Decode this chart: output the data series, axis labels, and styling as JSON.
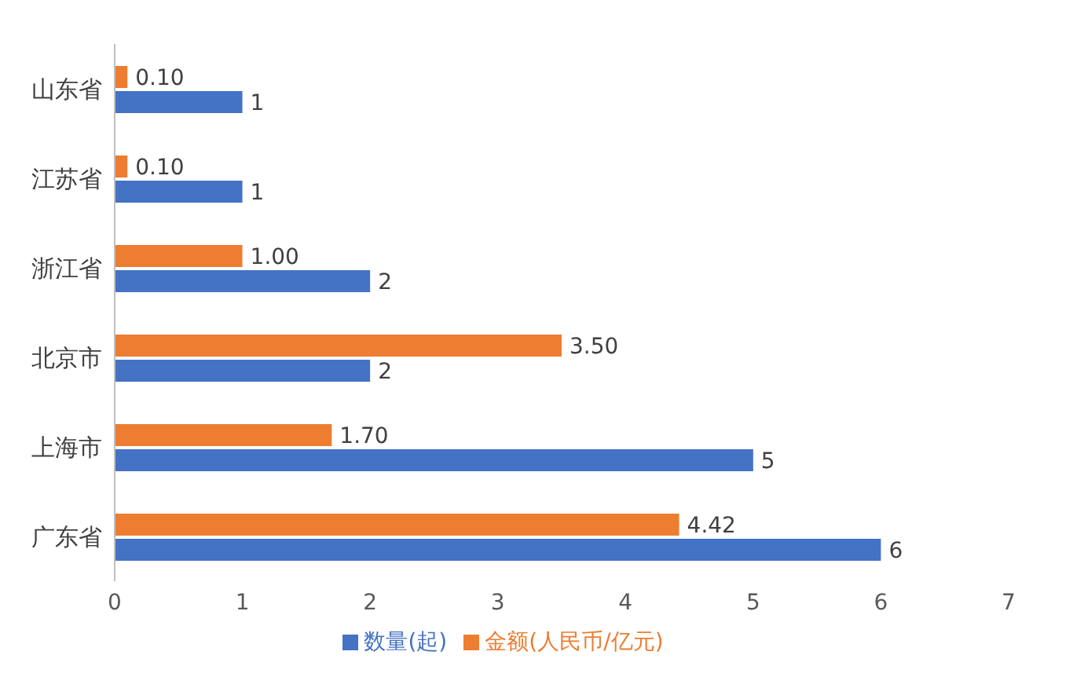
{
  "chart_data": {
    "type": "bar",
    "orientation": "horizontal",
    "categories": [
      "山东省",
      "江苏省",
      "浙江省",
      "北京市",
      "上海市",
      "广东省"
    ],
    "series": [
      {
        "name": "金额(人民币/亿元)",
        "color": "#ed7d31",
        "values": [
          0.1,
          0.1,
          1.0,
          3.5,
          1.7,
          4.42
        ],
        "value_labels": [
          "0.10",
          "0.10",
          "1.00",
          "3.50",
          "1.70",
          "4.42"
        ]
      },
      {
        "name": "数量(起)",
        "color": "#4472c4",
        "values": [
          1,
          1,
          2,
          2,
          5,
          6
        ],
        "value_labels": [
          "1",
          "1",
          "2",
          "2",
          "5",
          "6"
        ]
      }
    ],
    "xlim": [
      0,
      7
    ],
    "xticks": [
      0,
      1,
      2,
      3,
      4,
      5,
      6,
      7
    ],
    "grid": false,
    "legend": "bottom"
  }
}
